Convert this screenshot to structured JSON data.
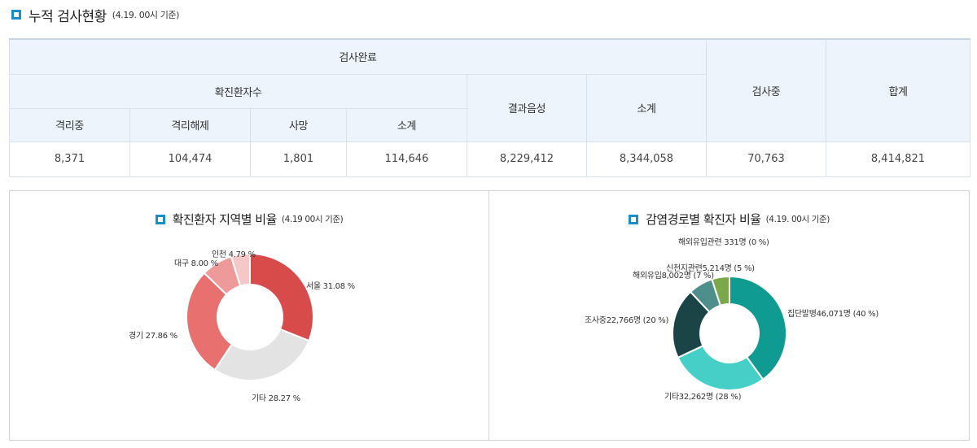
{
  "header": {
    "title": "누적 검사현황",
    "subtitle": "(4.19. 00시 기준)"
  },
  "table": {
    "group_complete": "검사완료",
    "group_confirmed": "확진환자수",
    "col_isolated": "격리중",
    "col_released": "격리해제",
    "col_deaths": "사망",
    "col_subtotal1": "소계",
    "col_negative": "결과음성",
    "col_subtotal2": "소계",
    "col_testing": "검사중",
    "col_total": "합계",
    "row": {
      "isolated": "8,371",
      "released": "104,474",
      "deaths": "1,801",
      "subtotal1": "114,646",
      "negative": "8,229,412",
      "subtotal2": "8,344,058",
      "testing": "70,763",
      "total": "8,414,821"
    }
  },
  "chart_data": [
    {
      "type": "pie",
      "title": "확진환자 지역별 비율",
      "subtitle": "(4.19 00시 기준)",
      "donut": true,
      "slices": [
        {
          "name": "서울",
          "value": 31.08,
          "label": "서울 31.08 %",
          "color": "#d84b4b"
        },
        {
          "name": "기타",
          "value": 28.27,
          "label": "기타 28.27 %",
          "color": "#e3e3e3"
        },
        {
          "name": "경기",
          "value": 27.86,
          "label": "경기 27.86 %",
          "color": "#e87170"
        },
        {
          "name": "대구",
          "value": 8.0,
          "label": "대구 8.00 %",
          "color": "#ef9a9a"
        },
        {
          "name": "인천",
          "value": 4.79,
          "label": "인천 4.79 %",
          "color": "#f5c7c7"
        }
      ]
    },
    {
      "type": "pie",
      "title": "감염경로별 확진자 비율",
      "subtitle": "(4.19. 00시 기준)",
      "donut": true,
      "slices": [
        {
          "name": "집단발병",
          "value": 40,
          "label": "집단발병46,071명 (40 %)",
          "color": "#0f9b92"
        },
        {
          "name": "기타",
          "value": 28,
          "label": "기타32,262명 (28 %)",
          "color": "#46cfc7"
        },
        {
          "name": "조사중",
          "value": 20,
          "label": "조사중22,766명 (20 %)",
          "color": "#1b4447"
        },
        {
          "name": "해외유입",
          "value": 7,
          "label": "해외유입8,002명 (7 %)",
          "color": "#4f8f8b"
        },
        {
          "name": "신천지관련",
          "value": 5,
          "label": "신천지관련5,214명 (5 %)",
          "color": "#7ba84b"
        },
        {
          "name": "해외유입관련",
          "value": 0,
          "label": "해외유입관련 331명 (0 %)",
          "color": "#c9d97e"
        }
      ]
    }
  ]
}
